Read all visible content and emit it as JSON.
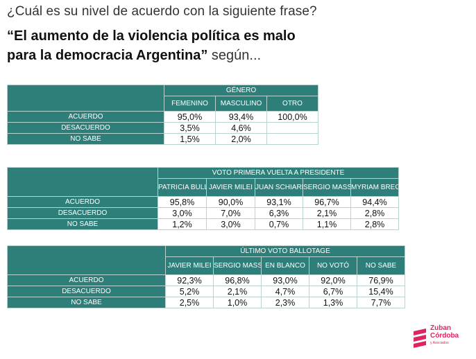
{
  "question": "¿Cuál es su nivel de acuerdo con la siguiente frase?",
  "headline": {
    "quote_line1": "“El aumento de la violencia política es malo",
    "quote_line2": "para la democracia Argentina”",
    "tail": " según..."
  },
  "row_labels": [
    "ACUERDO",
    "DESACUERDO",
    "NO SABE"
  ],
  "tables": [
    {
      "group": "GÉNERO",
      "columns": [
        "FEMENINO",
        "MASCULINO",
        "OTRO"
      ],
      "rows": [
        [
          "95,0%",
          "93,4%",
          "100,0%"
        ],
        [
          "3,5%",
          "4,6%",
          ""
        ],
        [
          "1,5%",
          "2,0%",
          ""
        ]
      ]
    },
    {
      "group": "VOTO PRIMERA VUELTA A PRESIDENTE",
      "columns": [
        "PATRICIA BULLRICH",
        "JAVIER MILEI",
        "JUAN SCHIARETTI",
        "SERGIO MASSA",
        "MYRIAM BREGMAN"
      ],
      "rows": [
        [
          "95,8%",
          "90,0%",
          "93,1%",
          "96,7%",
          "94,4%"
        ],
        [
          "3,0%",
          "7,0%",
          "6,3%",
          "2,1%",
          "2,8%"
        ],
        [
          "1,2%",
          "3,0%",
          "0,7%",
          "1,1%",
          "2,8%"
        ]
      ]
    },
    {
      "group": "ÚLTIMO VOTO BALLOTAGE",
      "columns": [
        "JAVIER MILEI",
        "SERGIO MASSA",
        "EN BLANCO",
        "NO VOTÓ",
        "NO SABE"
      ],
      "rows": [
        [
          "92,3%",
          "96,8%",
          "93,0%",
          "92,0%",
          "76,9%"
        ],
        [
          "5,2%",
          "2,1%",
          "4,7%",
          "6,7%",
          "15,4%"
        ],
        [
          "2,5%",
          "1,0%",
          "2,3%",
          "1,3%",
          "7,7%"
        ]
      ]
    }
  ],
  "logo": {
    "line1": "Zuban",
    "line2": "Córdoba",
    "sub": "y Asociados",
    "color": "#e0245e"
  },
  "colors": {
    "teal": "#2e7f7a",
    "accent": "#e0245e"
  }
}
